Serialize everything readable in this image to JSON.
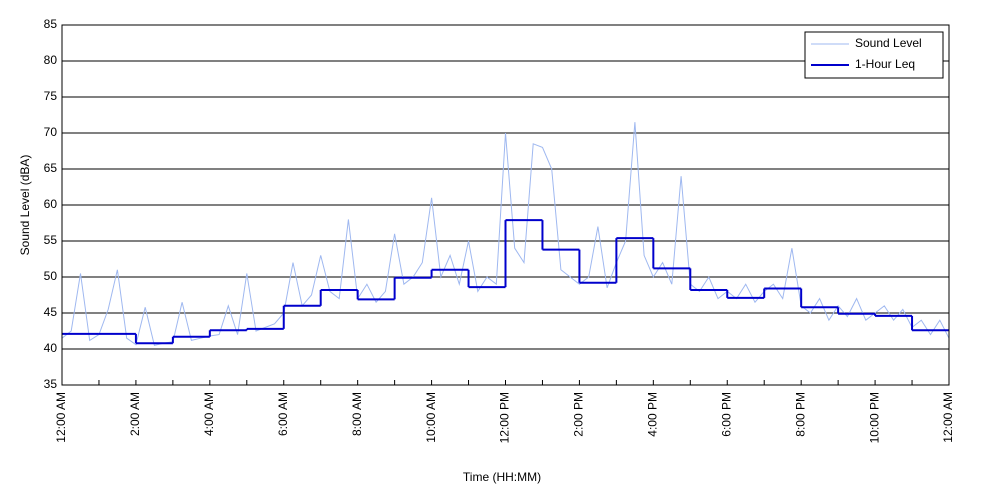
{
  "chart_data": {
    "type": "line",
    "xlabel": "Time (HH:MM)",
    "ylabel": "Sound Level (dBA)",
    "xlim": [
      0,
      24
    ],
    "ylim": [
      35,
      85
    ],
    "yticks": [
      35,
      40,
      45,
      50,
      55,
      60,
      65,
      70,
      75,
      80,
      85
    ],
    "xticks": [
      {
        "value": 0,
        "label": "12:00 AM"
      },
      {
        "value": 2,
        "label": "2:00 AM"
      },
      {
        "value": 4,
        "label": "4:00 AM"
      },
      {
        "value": 6,
        "label": "6:00 AM"
      },
      {
        "value": 8,
        "label": "8:00 AM"
      },
      {
        "value": 10,
        "label": "10:00 AM"
      },
      {
        "value": 12,
        "label": "12:00 PM"
      },
      {
        "value": 14,
        "label": "2:00 PM"
      },
      {
        "value": 16,
        "label": "4:00 PM"
      },
      {
        "value": 18,
        "label": "6:00 PM"
      },
      {
        "value": 20,
        "label": "8:00 PM"
      },
      {
        "value": 22,
        "label": "10:00 PM"
      },
      {
        "value": 24,
        "label": "12:00 AM"
      }
    ],
    "xminorticks": [
      1,
      3,
      5,
      7,
      9,
      11,
      13,
      15,
      17,
      19,
      21,
      23
    ],
    "grid": "y",
    "legend": "upper right",
    "series": [
      {
        "name": "Sound Level",
        "color": "#9fb8f0",
        "x": [
          0,
          0.25,
          0.5,
          0.75,
          1,
          1.25,
          1.5,
          1.75,
          2,
          2.25,
          2.5,
          2.75,
          3,
          3.25,
          3.5,
          3.75,
          4,
          4.25,
          4.5,
          4.75,
          5,
          5.25,
          5.5,
          5.75,
          6,
          6.25,
          6.5,
          6.75,
          7,
          7.25,
          7.5,
          7.75,
          8,
          8.25,
          8.5,
          8.75,
          9,
          9.25,
          9.5,
          9.75,
          10,
          10.25,
          10.5,
          10.75,
          11,
          11.25,
          11.5,
          11.75,
          12,
          12.25,
          12.5,
          12.75,
          13,
          13.25,
          13.5,
          13.75,
          14,
          14.25,
          14.5,
          14.75,
          15,
          15.25,
          15.5,
          15.75,
          16,
          16.25,
          16.5,
          16.75,
          17,
          17.25,
          17.5,
          17.75,
          18,
          18.25,
          18.5,
          18.75,
          19,
          19.25,
          19.5,
          19.75,
          20,
          20.25,
          20.5,
          20.75,
          21,
          21.25,
          21.5,
          21.75,
          22,
          22.25,
          22.5,
          22.75,
          23,
          23.25,
          23.5,
          23.75,
          24
        ],
        "values": [
          41.5,
          42.5,
          50.5,
          41.2,
          42,
          45.5,
          51,
          41.5,
          40.6,
          45.8,
          40.5,
          40.8,
          41,
          46.5,
          41.2,
          41.5,
          41.8,
          42,
          46,
          42,
          50.5,
          42.5,
          43,
          43.5,
          45,
          52,
          46,
          47.5,
          53,
          48,
          47,
          58,
          47,
          49,
          46.5,
          48,
          56,
          49,
          50,
          52,
          61,
          50,
          53,
          49,
          55,
          48,
          50,
          49,
          70,
          54,
          52,
          68.5,
          68,
          65,
          51,
          50,
          49,
          50,
          57,
          48.5,
          52,
          55,
          71.5,
          53,
          50,
          52,
          49,
          64,
          49,
          48,
          50,
          47,
          48,
          47,
          49,
          46.5,
          48,
          49,
          47,
          54,
          46,
          45,
          47,
          44,
          46,
          44.5,
          47,
          44,
          45,
          46,
          44,
          45.5,
          43,
          44,
          42,
          44,
          41.5
        ]
      },
      {
        "name": "1-Hour Leq",
        "color": "#0000cc",
        "step": "post",
        "x": [
          0,
          1,
          2,
          3,
          4,
          5,
          6,
          7,
          8,
          9,
          10,
          11,
          12,
          13,
          14,
          15,
          16,
          17,
          18,
          19,
          20,
          21,
          22,
          23
        ],
        "values": [
          42.1,
          42.1,
          40.8,
          41.7,
          42.6,
          42.8,
          46.0,
          48.2,
          46.9,
          49.9,
          51.0,
          48.6,
          57.9,
          53.8,
          49.2,
          55.4,
          51.2,
          48.2,
          47.1,
          48.4,
          45.8,
          44.9,
          44.6,
          42.6
        ]
      }
    ]
  }
}
